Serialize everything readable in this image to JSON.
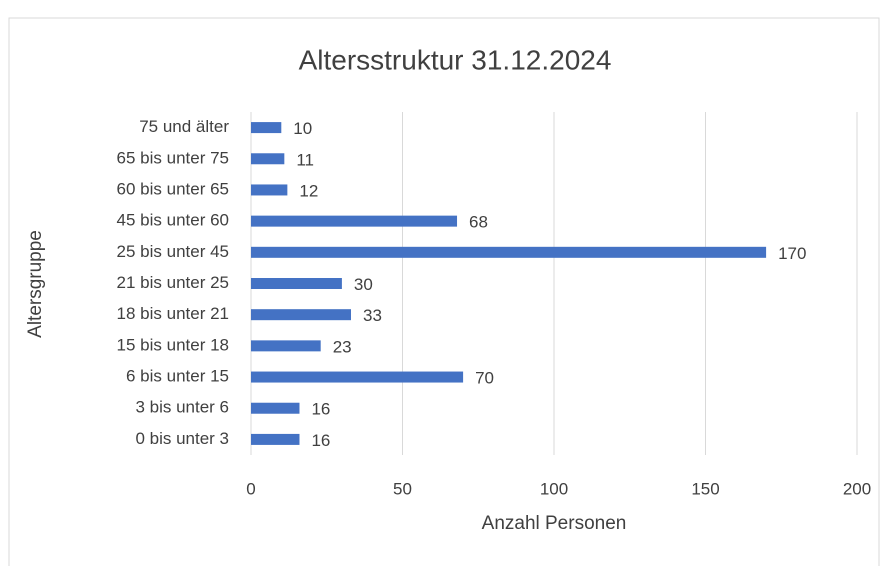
{
  "chart_data": {
    "type": "barh",
    "title": "Altersstruktur 31.12.2024",
    "x_label": "Anzahl Personen",
    "y_label": "Altersgruppe",
    "categories": [
      "0 bis unter 3",
      "3 bis unter 6",
      "6 bis unter 15",
      "15 bis unter 18",
      "18 bis unter 21",
      "21 bis unter 25",
      "25 bis unter 45",
      "45 bis unter 60",
      "60 bis unter 65",
      "65 bis unter 75",
      "75 und älter"
    ],
    "values": [
      16,
      16,
      70,
      23,
      33,
      30,
      170,
      68,
      12,
      11,
      10
    ],
    "color": "#4472c4",
    "xlim": [
      0,
      200
    ],
    "xticks": [
      0,
      50,
      100,
      150,
      200
    ],
    "grid": true
  }
}
